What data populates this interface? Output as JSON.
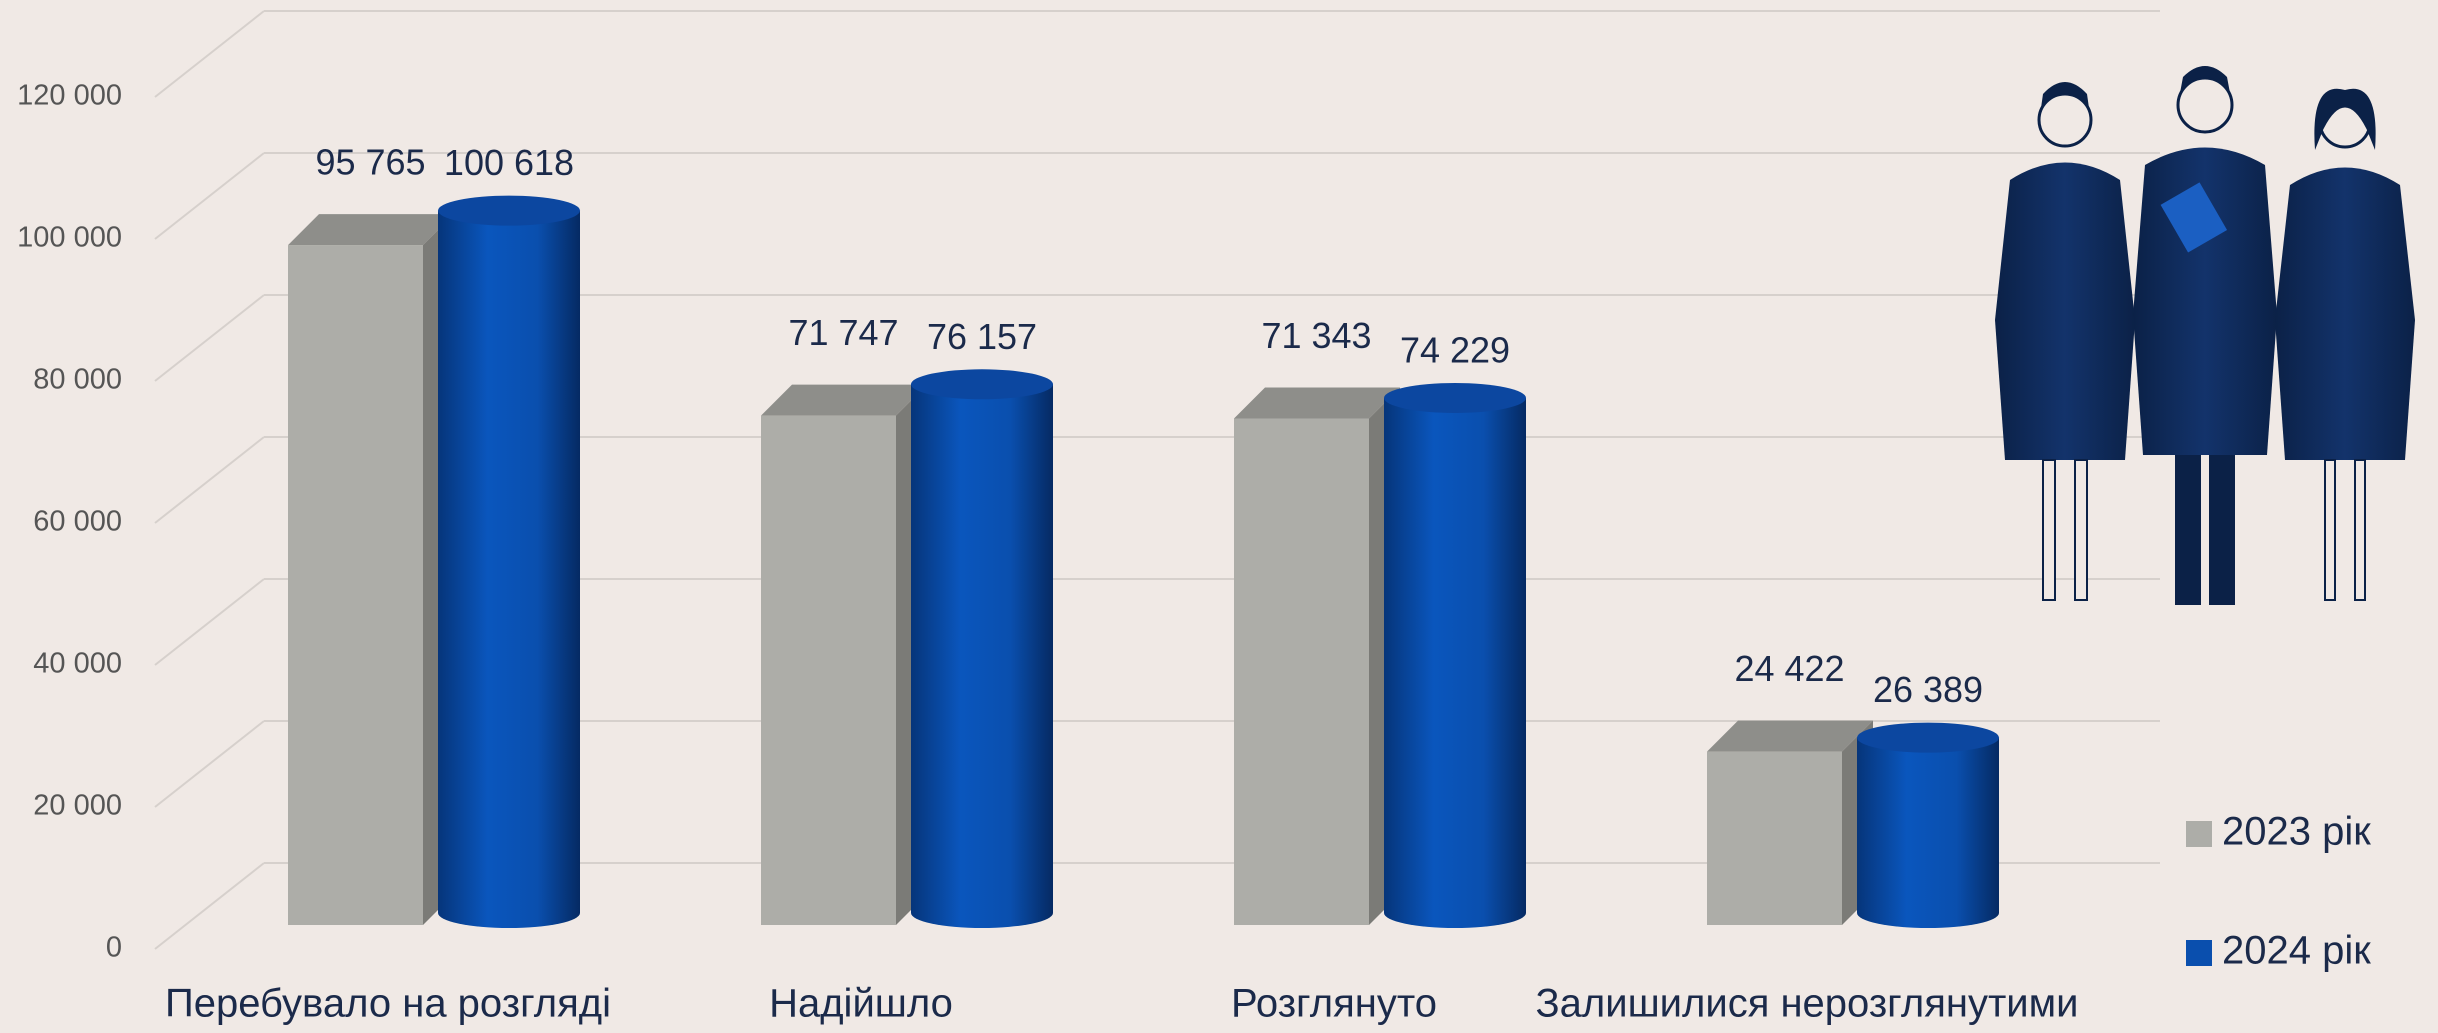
{
  "chart_data": {
    "type": "bar",
    "categories": [
      "Перебувало на розгляді",
      "Надійшло",
      "Розглянуто",
      "Залишилися нерозглянутими"
    ],
    "series": [
      {
        "name": "2023 рік",
        "color": "#adada8",
        "values": [
          95765,
          71747,
          71343,
          24422
        ],
        "value_labels": [
          "95 765",
          "71 747",
          "71 343",
          "24 422"
        ]
      },
      {
        "name": "2024 рік",
        "color": "#0a4fae",
        "values": [
          100618,
          76157,
          74229,
          26389
        ],
        "value_labels": [
          "100 618",
          "76 157",
          "74 229",
          "26 389"
        ]
      }
    ],
    "ylim": [
      0,
      120000
    ],
    "yticks": [
      0,
      {
        "value": 20000,
        "label": "20 000"
      },
      {
        "value": 40000,
        "label": "40 000"
      },
      {
        "value": 60000,
        "label": "60 000"
      },
      {
        "value": 80000,
        "label": "80 000"
      },
      {
        "value": 100000,
        "label": "100 000"
      },
      {
        "value": 120000,
        "label": "120 000"
      }
    ],
    "grid": true,
    "legend": "right"
  }
}
